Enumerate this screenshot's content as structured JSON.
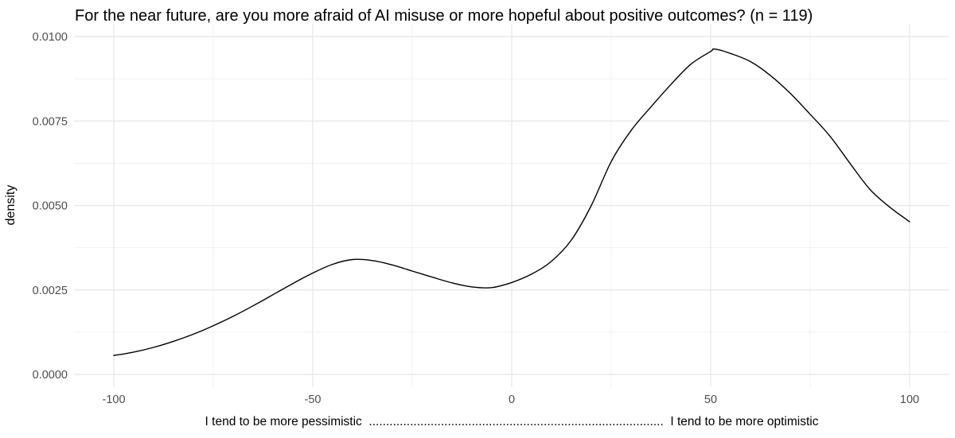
{
  "title": "For the near future, are you more afraid of AI misuse or more hopeful about positive outcomes? (n = 119)",
  "colors": {
    "background": "#ffffff",
    "curve": "#000000",
    "grid_major": "#e9e9e9",
    "grid_minor": "#f1f1f1",
    "tick_label": "#4d4d4d",
    "text": "#000000"
  },
  "chart_data": {
    "type": "line",
    "subtype": "density-curve",
    "title": "For the near future, are you more afraid of AI misuse or more hopeful about positive outcomes? (n = 119)",
    "xlabel": "I tend to be more pessimistic  ......................................................................................  I tend to be more optimistic",
    "ylabel": "density",
    "xlim": [
      -100,
      100
    ],
    "ylim": [
      0,
      0.01
    ],
    "grid": true,
    "legend": false,
    "x_major_ticks": [
      -100,
      -50,
      0,
      50,
      100
    ],
    "x_tick_labels": [
      "-100",
      "-50",
      "0",
      "50",
      "100"
    ],
    "x_minor_ticks": [
      -75,
      -25,
      25,
      75
    ],
    "y_major_ticks": [
      0,
      0.0025,
      0.005,
      0.0075,
      0.01
    ],
    "y_tick_labels": [
      "0.0000",
      "0.0025",
      "0.0050",
      "0.0075",
      "0.0100"
    ],
    "y_minor_ticks": [
      0.00125,
      0.00375,
      0.00625,
      0.00875
    ],
    "series": [
      {
        "name": "density",
        "points": [
          [
            -100,
            0.00056
          ],
          [
            -95,
            0.00066
          ],
          [
            -90,
            0.0008
          ],
          [
            -85,
            0.00098
          ],
          [
            -80,
            0.00119
          ],
          [
            -75,
            0.00144
          ],
          [
            -70,
            0.00172
          ],
          [
            -65,
            0.00203
          ],
          [
            -60,
            0.00236
          ],
          [
            -55,
            0.00269
          ],
          [
            -50,
            0.003
          ],
          [
            -45,
            0.00326
          ],
          [
            -40,
            0.0034
          ],
          [
            -35,
            0.00337
          ],
          [
            -30,
            0.00324
          ],
          [
            -25,
            0.00306
          ],
          [
            -20,
            0.00288
          ],
          [
            -15,
            0.00271
          ],
          [
            -10,
            0.00259
          ],
          [
            -5,
            0.00257
          ],
          [
            0,
            0.00272
          ],
          [
            5,
            0.00297
          ],
          [
            10,
            0.00335
          ],
          [
            15,
            0.00398
          ],
          [
            20,
            0.005
          ],
          [
            25,
            0.0063
          ],
          [
            30,
            0.00722
          ],
          [
            35,
            0.00792
          ],
          [
            40,
            0.00858
          ],
          [
            45,
            0.00918
          ],
          [
            50,
            0.00956
          ],
          [
            51,
            0.00963
          ],
          [
            55,
            0.0095
          ],
          [
            60,
            0.00926
          ],
          [
            65,
            0.00885
          ],
          [
            70,
            0.00832
          ],
          [
            75,
            0.0077
          ],
          [
            80,
            0.00705
          ],
          [
            85,
            0.00625
          ],
          [
            90,
            0.00548
          ],
          [
            95,
            0.00495
          ],
          [
            100,
            0.00452
          ]
        ],
        "annotations": {
          "local_max": {
            "x": -42,
            "density": 0.0034
          },
          "local_min": {
            "x": -8,
            "density": 0.0026
          },
          "global_peak": {
            "x": 51,
            "density": 0.0096
          },
          "left_end": {
            "x": -100,
            "density": 0.0006
          },
          "right_end": {
            "x": 100,
            "density": 0.0045
          }
        }
      }
    ]
  }
}
